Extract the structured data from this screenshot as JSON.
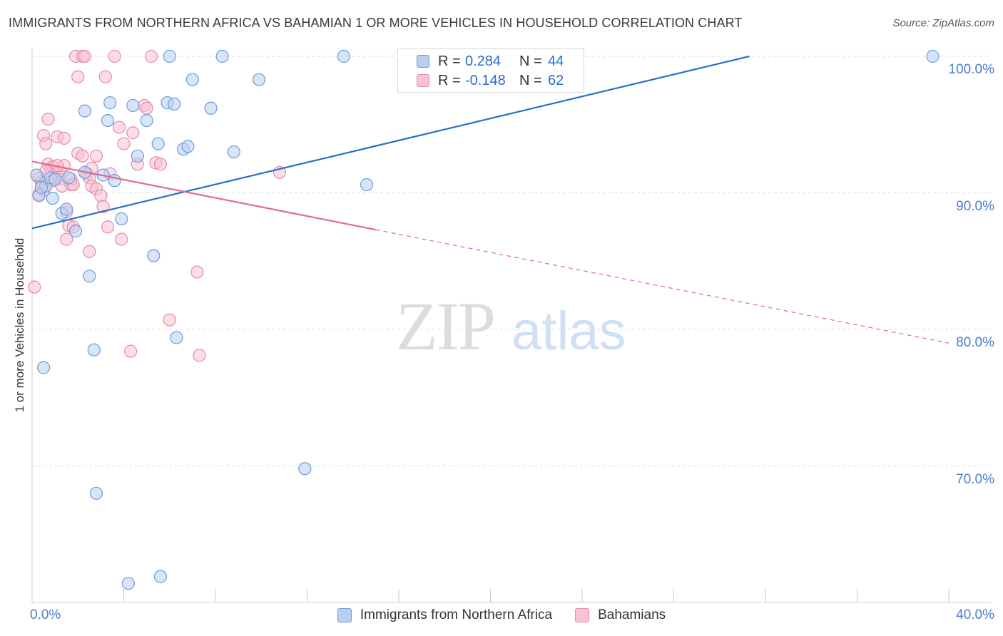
{
  "header": {
    "title": "IMMIGRANTS FROM NORTHERN AFRICA VS BAHAMIAN 1 OR MORE VEHICLES IN HOUSEHOLD CORRELATION CHART",
    "source": "Source: ZipAtlas.com"
  },
  "watermark": {
    "zip": "ZIP",
    "atlas": "atlas"
  },
  "legend": {
    "rows": [
      {
        "r_label": "R =",
        "r_value": "0.284",
        "n_label": "N =",
        "n_value": "44"
      },
      {
        "r_label": "R =",
        "r_value": "-0.148",
        "n_label": "N =",
        "n_value": "62"
      }
    ]
  },
  "colors": {
    "blue_fill": "#b8d0f0",
    "blue_stroke": "#6a9be0",
    "blue_line": "#2b6dcc",
    "pink_fill": "#f7c3d4",
    "pink_stroke": "#e889a9",
    "pink_line": "#e06a96",
    "tick_text": "#4a7fd0",
    "grid": "#dcdcdc"
  },
  "chart_data": {
    "type": "scatter",
    "title": "IMMIGRANTS FROM NORTHERN AFRICA VS BAHAMIAN 1 OR MORE VEHICLES IN HOUSEHOLD CORRELATION CHART",
    "xlabel": "",
    "ylabel": "1 or more Vehicles in Household",
    "xlim": [
      0,
      40
    ],
    "ylim": [
      60.3,
      102.0
    ],
    "x_tick_labels": [
      {
        "value": 0,
        "label": "0.0%"
      },
      {
        "value": 40,
        "label": "40.0%"
      }
    ],
    "y_tick_labels": [
      {
        "value": 100,
        "label": "100.0%"
      },
      {
        "value": 90,
        "label": "90.0%"
      },
      {
        "value": 80,
        "label": "80.0%"
      },
      {
        "value": 70,
        "label": "70.0%"
      }
    ],
    "x_minor_ticks": [
      4,
      8,
      12,
      16,
      20,
      24,
      28,
      32,
      36,
      40
    ],
    "series": [
      {
        "name": "Immigrants from Northern Africa",
        "color": "blue",
        "r": 0.284,
        "n": 44,
        "trend": {
          "x0": 0,
          "y0": 87.4,
          "x1": 31.3,
          "y1": 100.0,
          "dashed_to": null
        },
        "points": [
          [
            0.3,
            89.8
          ],
          [
            0.5,
            77.2
          ],
          [
            0.6,
            90.5
          ],
          [
            0.8,
            91.1
          ],
          [
            0.9,
            89.6
          ],
          [
            1.3,
            88.5
          ],
          [
            1.5,
            88.8
          ],
          [
            1.6,
            91.1
          ],
          [
            1.9,
            87.2
          ],
          [
            2.3,
            91.5
          ],
          [
            2.3,
            96.0
          ],
          [
            2.5,
            83.9
          ],
          [
            2.7,
            78.5
          ],
          [
            2.8,
            68.0
          ],
          [
            3.1,
            91.3
          ],
          [
            3.3,
            95.3
          ],
          [
            3.4,
            96.6
          ],
          [
            3.6,
            90.9
          ],
          [
            3.9,
            88.1
          ],
          [
            4.2,
            61.4
          ],
          [
            4.4,
            96.4
          ],
          [
            4.6,
            92.7
          ],
          [
            5.0,
            95.3
          ],
          [
            5.3,
            85.4
          ],
          [
            5.5,
            93.6
          ],
          [
            5.6,
            61.9
          ],
          [
            5.9,
            96.6
          ],
          [
            6.0,
            100.0
          ],
          [
            6.2,
            96.5
          ],
          [
            6.3,
            79.4
          ],
          [
            6.6,
            93.2
          ],
          [
            6.8,
            93.4
          ],
          [
            7.0,
            98.3
          ],
          [
            7.8,
            96.2
          ],
          [
            8.3,
            100.0
          ],
          [
            8.8,
            93.0
          ],
          [
            9.9,
            98.3
          ],
          [
            11.9,
            69.8
          ],
          [
            13.6,
            100.0
          ],
          [
            14.6,
            90.6
          ],
          [
            0.2,
            91.3
          ],
          [
            1.0,
            91.0
          ],
          [
            0.4,
            90.4
          ],
          [
            39.3,
            100.0
          ]
        ]
      },
      {
        "name": "Bahamians",
        "color": "pink",
        "r": -0.148,
        "n": 62,
        "trend": {
          "x0": 0,
          "y0": 92.3,
          "x1": 15.0,
          "y1": 87.3,
          "dashed_to": {
            "x": 40,
            "y": 79.0
          }
        },
        "points": [
          [
            0.1,
            83.1
          ],
          [
            0.3,
            91.1
          ],
          [
            0.3,
            89.9
          ],
          [
            0.4,
            90.8
          ],
          [
            0.5,
            94.2
          ],
          [
            0.5,
            90.2
          ],
          [
            0.6,
            93.6
          ],
          [
            0.7,
            92.1
          ],
          [
            0.7,
            95.4
          ],
          [
            0.8,
            91.7
          ],
          [
            0.9,
            90.9
          ],
          [
            0.9,
            91.9
          ],
          [
            1.0,
            91.4
          ],
          [
            1.1,
            94.1
          ],
          [
            1.2,
            91.6
          ],
          [
            1.2,
            91.0
          ],
          [
            1.3,
            90.5
          ],
          [
            1.4,
            94.0
          ],
          [
            1.4,
            92.0
          ],
          [
            1.5,
            88.6
          ],
          [
            1.5,
            86.6
          ],
          [
            1.6,
            87.6
          ],
          [
            1.7,
            90.6
          ],
          [
            1.8,
            87.5
          ],
          [
            1.7,
            91.0
          ],
          [
            1.8,
            90.6
          ],
          [
            1.9,
            100.0
          ],
          [
            2.0,
            92.9
          ],
          [
            2.0,
            98.5
          ],
          [
            2.2,
            100.0
          ],
          [
            2.2,
            92.7
          ],
          [
            2.3,
            100.0
          ],
          [
            2.4,
            91.4
          ],
          [
            2.5,
            85.7
          ],
          [
            2.5,
            91.1
          ],
          [
            2.6,
            90.5
          ],
          [
            2.6,
            91.8
          ],
          [
            2.8,
            92.7
          ],
          [
            2.8,
            90.3
          ],
          [
            3.0,
            89.8
          ],
          [
            3.1,
            89.0
          ],
          [
            3.2,
            98.5
          ],
          [
            3.3,
            87.5
          ],
          [
            3.4,
            91.4
          ],
          [
            3.6,
            100.0
          ],
          [
            3.8,
            94.8
          ],
          [
            3.9,
            86.6
          ],
          [
            4.0,
            93.6
          ],
          [
            4.3,
            78.4
          ],
          [
            4.4,
            94.4
          ],
          [
            4.6,
            92.1
          ],
          [
            4.9,
            96.4
          ],
          [
            5.0,
            96.2
          ],
          [
            5.2,
            100.0
          ],
          [
            5.4,
            92.2
          ],
          [
            5.6,
            92.1
          ],
          [
            6.0,
            80.7
          ],
          [
            7.2,
            84.2
          ],
          [
            7.3,
            78.1
          ],
          [
            10.8,
            91.5
          ],
          [
            0.6,
            91.6
          ],
          [
            1.1,
            92.0
          ]
        ]
      }
    ]
  },
  "bottom_legend": {
    "items": [
      {
        "label": "Immigrants from Northern Africa",
        "color": "blue"
      },
      {
        "label": "Bahamians",
        "color": "pink"
      }
    ]
  }
}
